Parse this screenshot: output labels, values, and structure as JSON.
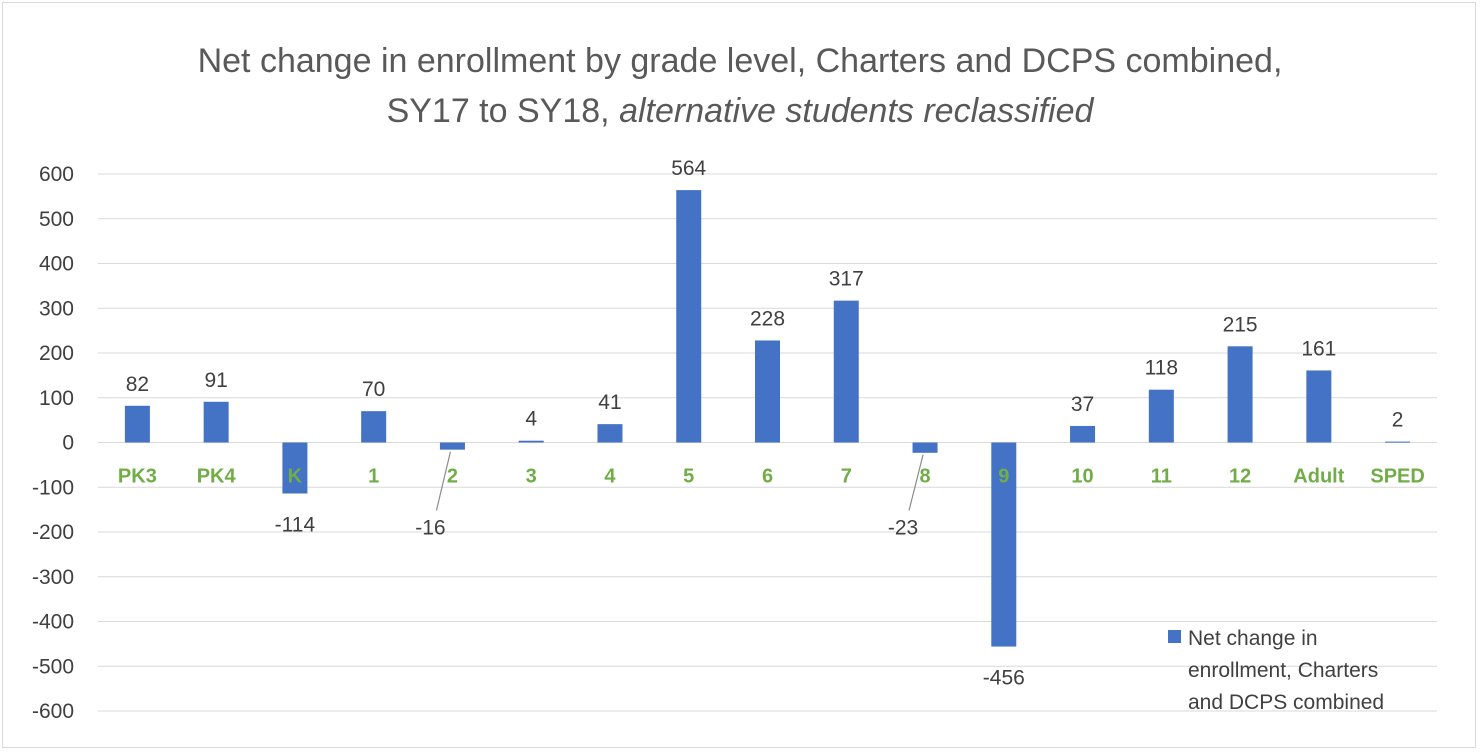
{
  "chart_data": {
    "type": "bar",
    "title_line1": "Net change in enrollment by grade level, Charters and DCPS combined,",
    "title_line2_plain": "SY17 to SY18, ",
    "title_line2_italic": "alternative students reclassified",
    "categories": [
      "PK3",
      "PK4",
      "K",
      "1",
      "2",
      "3",
      "4",
      "5",
      "6",
      "7",
      "8",
      "9",
      "10",
      "11",
      "12",
      "Adult",
      "SPED"
    ],
    "series": [
      {
        "name": "Net change in enrollment, Charters and DCPS combined",
        "values": [
          82,
          91,
          -114,
          70,
          -16,
          4,
          41,
          564,
          228,
          317,
          -23,
          -456,
          37,
          118,
          215,
          161,
          2
        ],
        "data_labels": [
          "82",
          "91",
          "-114",
          "70",
          "-16",
          "4",
          "41",
          "564",
          "228",
          "317",
          "-23",
          "-456",
          "37",
          "118",
          "215",
          "161",
          "2"
        ]
      }
    ],
    "yticks": [
      "600",
      "500",
      "400",
      "300",
      "200",
      "100",
      "0",
      "-100",
      "-200",
      "-300",
      "-400",
      "-500",
      "-600"
    ],
    "ylim": [
      -600,
      600
    ],
    "grid": true,
    "legend_position": "bottom-right",
    "legend_lines": [
      "Net change in",
      "enrollment, Charters",
      "and DCPS combined"
    ],
    "colors": {
      "bar": "#4472c4",
      "category_label": "#70ad47",
      "grid": "#d9d9d9",
      "text": "#404040",
      "title": "#595959"
    }
  }
}
